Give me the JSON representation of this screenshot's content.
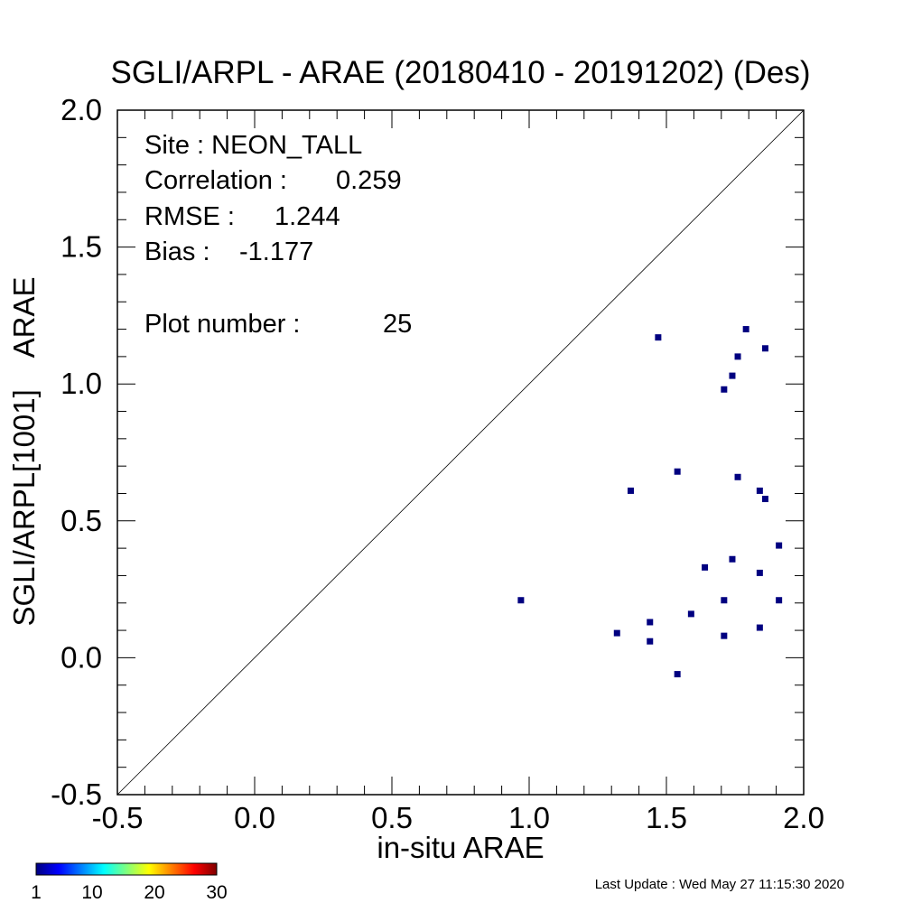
{
  "chart_data": {
    "type": "scatter",
    "title": "SGLI/ARPL - ARAE (20180410 - 20191202) (Des)",
    "xlabel": "in-situ ARAE",
    "ylabel": "SGLI/ARPL[1001]    ARAE",
    "xlim": [
      -0.5,
      2.0
    ],
    "ylim": [
      -0.5,
      2.0
    ],
    "x_ticks": [
      "-0.5",
      "0.0",
      "0.5",
      "1.0",
      "1.5",
      "2.0"
    ],
    "y_ticks": [
      "-0.5",
      "0.0",
      "0.5",
      "1.0",
      "1.5",
      "2.0"
    ],
    "reference_line": "1:1",
    "grid": false,
    "point_color": "#000080",
    "points": [
      {
        "x": 0.97,
        "y": 0.21
      },
      {
        "x": 1.32,
        "y": 0.09
      },
      {
        "x": 1.37,
        "y": 0.61
      },
      {
        "x": 1.44,
        "y": 0.13
      },
      {
        "x": 1.44,
        "y": 0.06
      },
      {
        "x": 1.47,
        "y": 1.17
      },
      {
        "x": 1.54,
        "y": 0.68
      },
      {
        "x": 1.54,
        "y": -0.06
      },
      {
        "x": 1.59,
        "y": 0.16
      },
      {
        "x": 1.64,
        "y": 0.33
      },
      {
        "x": 1.71,
        "y": 0.98
      },
      {
        "x": 1.71,
        "y": 0.21
      },
      {
        "x": 1.71,
        "y": 0.08
      },
      {
        "x": 1.74,
        "y": 1.03
      },
      {
        "x": 1.74,
        "y": 0.36
      },
      {
        "x": 1.76,
        "y": 1.1
      },
      {
        "x": 1.76,
        "y": 0.66
      },
      {
        "x": 1.79,
        "y": 1.2
      },
      {
        "x": 1.84,
        "y": 0.61
      },
      {
        "x": 1.84,
        "y": 0.31
      },
      {
        "x": 1.84,
        "y": 0.11
      },
      {
        "x": 1.86,
        "y": 1.13
      },
      {
        "x": 1.86,
        "y": 0.58
      },
      {
        "x": 1.91,
        "y": 0.41
      },
      {
        "x": 1.91,
        "y": 0.21
      }
    ]
  },
  "stats": {
    "site": "Site : NEON_TALL",
    "correlation_label": "Correlation :",
    "correlation_value": "0.259",
    "rmse_label": "RMSE :",
    "rmse_value": "1.244",
    "bias_label": "Bias :",
    "bias_value": "-1.177",
    "plot_number_label": "Plot number :",
    "plot_number_value": "25"
  },
  "colorbar": {
    "ticks": [
      "1",
      "10",
      "20",
      "30"
    ],
    "colors": [
      "#00007f",
      "#0000ff",
      "#007fff",
      "#00ffff",
      "#7fff7f",
      "#ffff00",
      "#ff7f00",
      "#ff0000",
      "#7f0000"
    ]
  },
  "footer": {
    "last_update": "Last Update : Wed May 27 11:15:30 2020"
  }
}
